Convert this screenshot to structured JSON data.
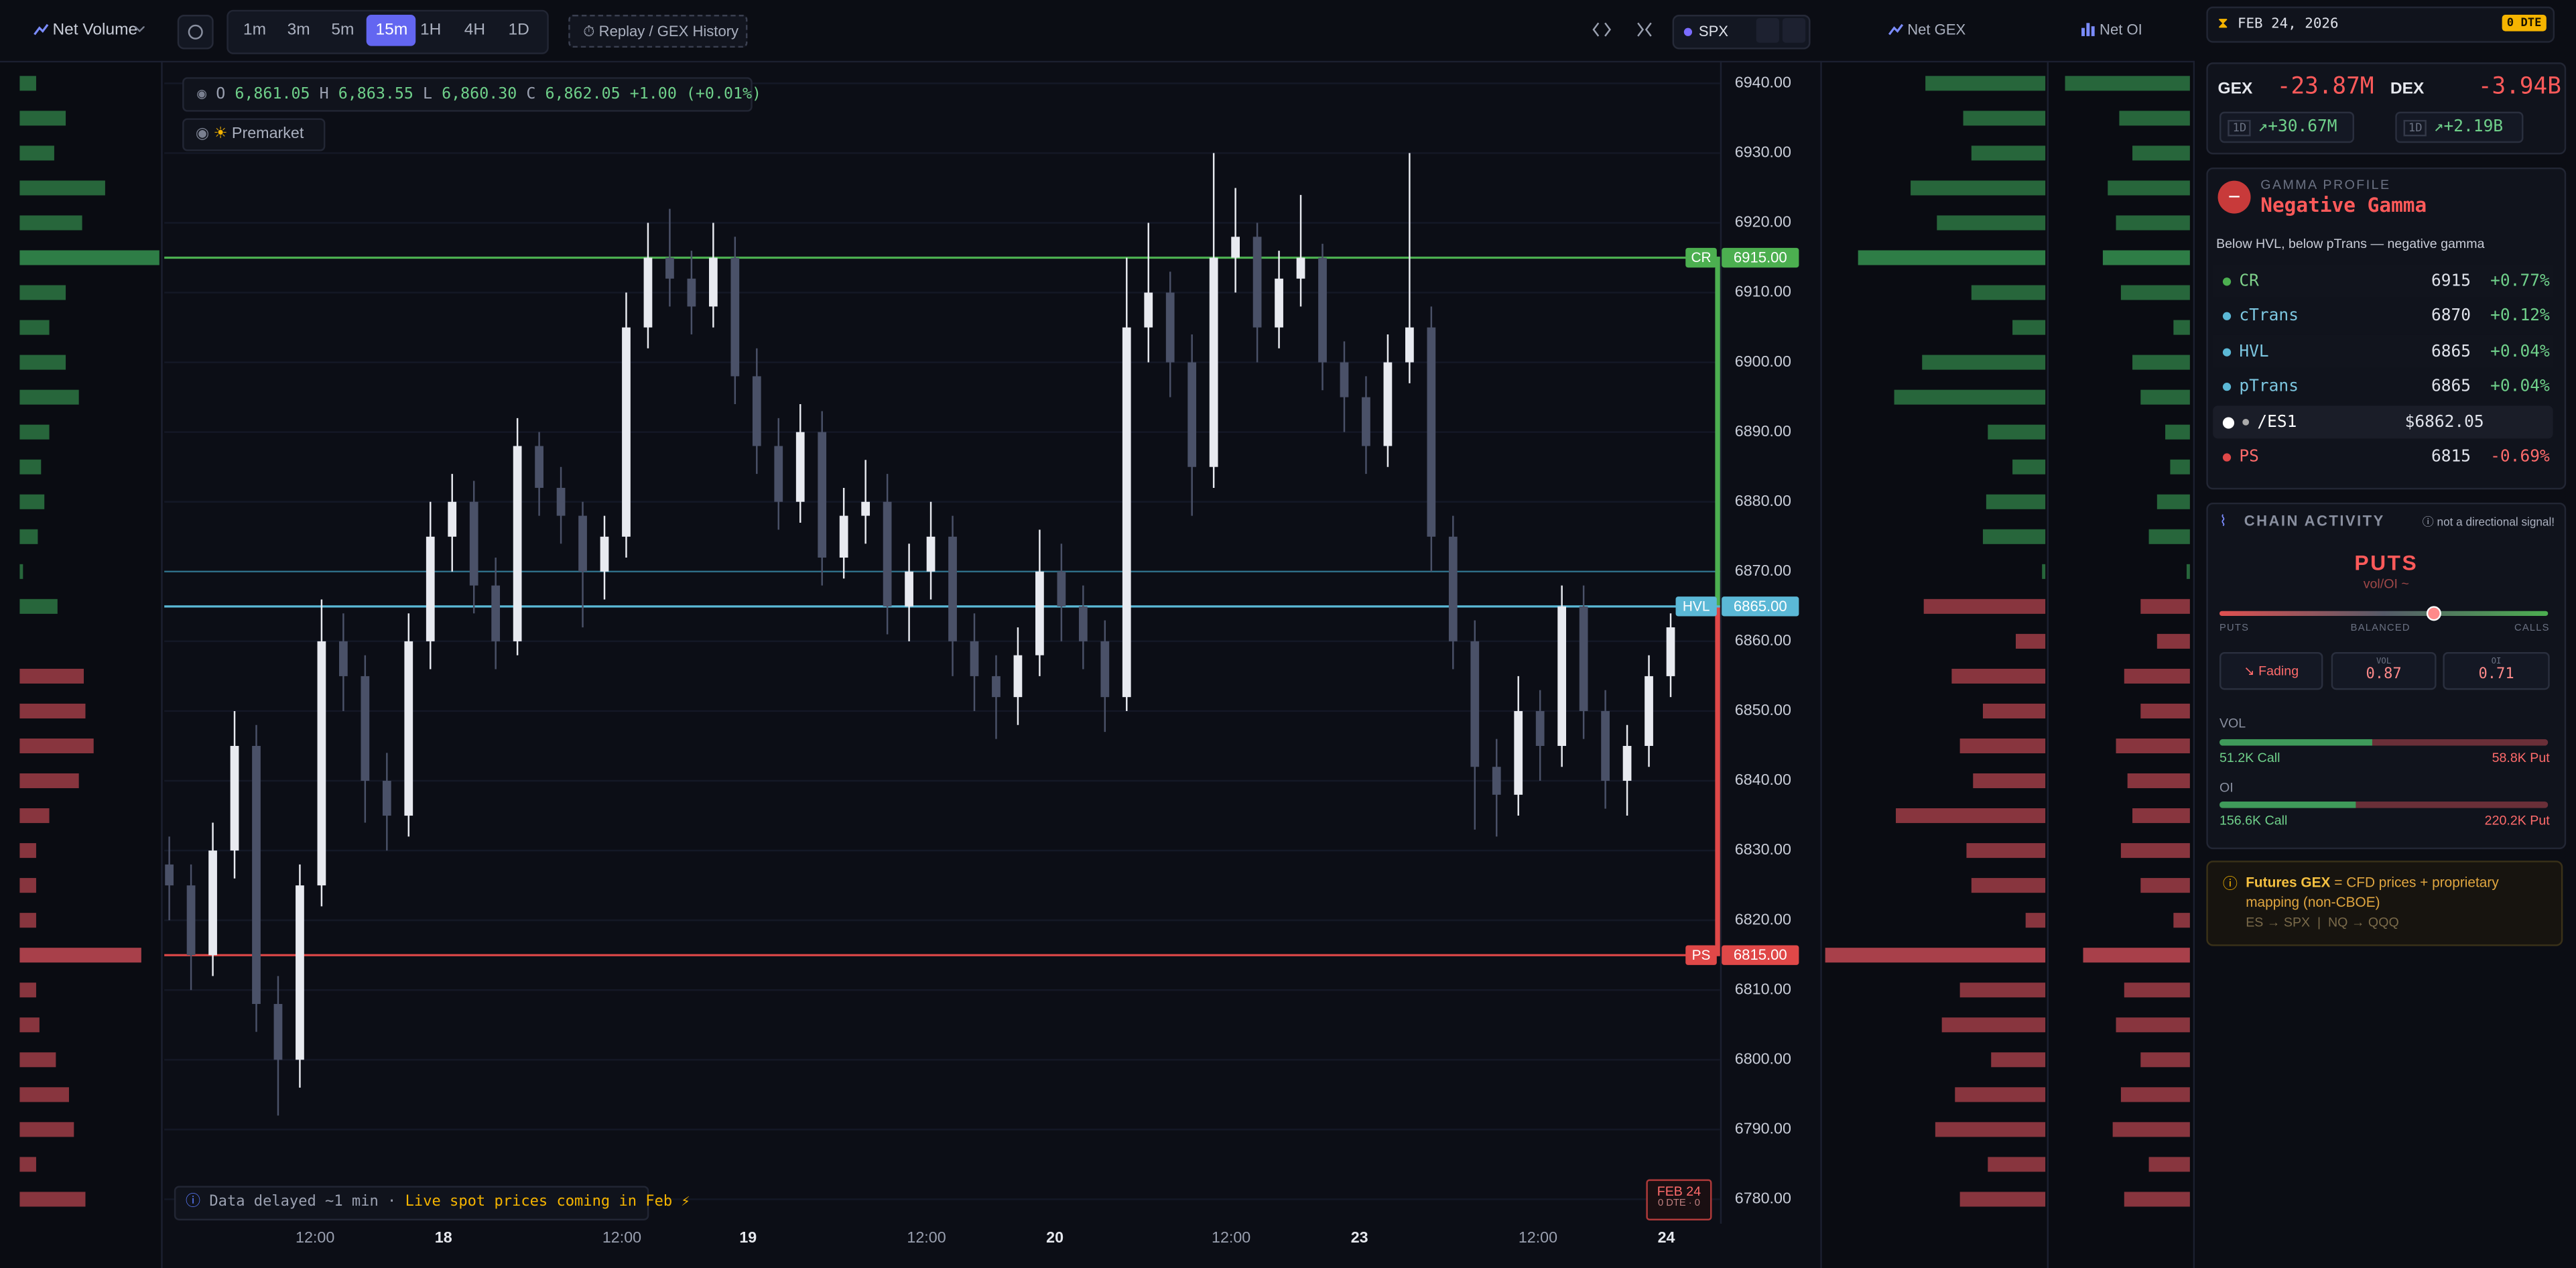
{
  "toolbar": {
    "left_dropdown": "Net Volume",
    "timeframes": [
      "1m",
      "3m",
      "5m",
      "15m",
      "1H",
      "4H",
      "1D"
    ],
    "active_timeframe": "15m",
    "replay": "Replay / GEX History",
    "symbol": "SPX",
    "gex_dropdown": "Net GEX",
    "oi_dropdown": "Net OI"
  },
  "chart": {
    "type": "candlestick",
    "ohlc": {
      "o_label": "O",
      "o": "6,861.05",
      "h_label": "H",
      "h": "6,863.55",
      "l_label": "L",
      "l": "6,860.30",
      "c_label": "C",
      "c": "6,862.05",
      "change": "+1.00 (+0.01%)"
    },
    "session": "Premarket",
    "xlim": [
      -0.23,
      71.27
    ],
    "ylim": [
      6776.5,
      6943
    ],
    "yticks": [
      {
        "value": 6940,
        "label": "6940.00"
      },
      {
        "value": 6930,
        "label": "6930.00"
      },
      {
        "value": 6920,
        "label": "6920.00"
      },
      {
        "value": 6910,
        "label": "6910.00"
      },
      {
        "value": 6900,
        "label": "6900.00"
      },
      {
        "value": 6890,
        "label": "6890.00"
      },
      {
        "value": 6880,
        "label": "6880.00"
      },
      {
        "value": 6870,
        "label": "6870.00"
      },
      {
        "value": 6860,
        "label": "6860.00"
      },
      {
        "value": 6850,
        "label": "6850.00"
      },
      {
        "value": 6840,
        "label": "6840.00"
      },
      {
        "value": 6830,
        "label": "6830.00"
      },
      {
        "value": 6820,
        "label": "6820.00"
      },
      {
        "value": 6810,
        "label": "6810.00"
      },
      {
        "value": 6800,
        "label": "6800.00"
      },
      {
        "value": 6790,
        "label": "6790.00"
      },
      {
        "value": 6780,
        "label": "6780.00"
      }
    ],
    "xticks": [
      {
        "value": 6.7,
        "label": "12:00"
      },
      {
        "value": 12.6,
        "label": "18"
      },
      {
        "value": 20.8,
        "label": "12:00"
      },
      {
        "value": 26.6,
        "label": "19"
      },
      {
        "value": 34.8,
        "label": "12:00"
      },
      {
        "value": 40.7,
        "label": "20"
      },
      {
        "value": 48.8,
        "label": "12:00"
      },
      {
        "value": 54.7,
        "label": "23"
      },
      {
        "value": 62.9,
        "label": "12:00"
      },
      {
        "value": 68.8,
        "label": "24"
      }
    ],
    "candles": [
      [
        6828,
        6832,
        6820,
        6825
      ],
      [
        6825,
        6828,
        6810,
        6815
      ],
      [
        6815,
        6834,
        6812,
        6830
      ],
      [
        6830,
        6850,
        6826,
        6845
      ],
      [
        6845,
        6848,
        6804,
        6808
      ],
      [
        6808,
        6812,
        6792,
        6800
      ],
      [
        6800,
        6828,
        6796,
        6825
      ],
      [
        6825,
        6866,
        6822,
        6860
      ],
      [
        6860,
        6864,
        6850,
        6855
      ],
      [
        6855,
        6858,
        6834,
        6840
      ],
      [
        6840,
        6844,
        6830,
        6835
      ],
      [
        6835,
        6864,
        6832,
        6860
      ],
      [
        6860,
        6880,
        6856,
        6875
      ],
      [
        6875,
        6884,
        6870,
        6880
      ],
      [
        6880,
        6883,
        6864,
        6868
      ],
      [
        6868,
        6872,
        6856,
        6860
      ],
      [
        6860,
        6892,
        6858,
        6888
      ],
      [
        6888,
        6890,
        6878,
        6882
      ],
      [
        6882,
        6885,
        6874,
        6878
      ],
      [
        6878,
        6880,
        6862,
        6870
      ],
      [
        6870,
        6878,
        6866,
        6875
      ],
      [
        6875,
        6910,
        6872,
        6905
      ],
      [
        6905,
        6920,
        6902,
        6915
      ],
      [
        6915,
        6922,
        6908,
        6912
      ],
      [
        6912,
        6916,
        6904,
        6908
      ],
      [
        6908,
        6920,
        6905,
        6915
      ],
      [
        6915,
        6918,
        6894,
        6898
      ],
      [
        6898,
        6902,
        6884,
        6888
      ],
      [
        6888,
        6892,
        6876,
        6880
      ],
      [
        6880,
        6894,
        6877,
        6890
      ],
      [
        6890,
        6893,
        6868,
        6872
      ],
      [
        6872,
        6882,
        6869,
        6878
      ],
      [
        6878,
        6886,
        6874,
        6880
      ],
      [
        6880,
        6884,
        6861,
        6865
      ],
      [
        6865,
        6874,
        6860,
        6870
      ],
      [
        6870,
        6880,
        6866,
        6875
      ],
      [
        6875,
        6878,
        6855,
        6860
      ],
      [
        6860,
        6864,
        6850,
        6855
      ],
      [
        6855,
        6858,
        6846,
        6852
      ],
      [
        6852,
        6862,
        6848,
        6858
      ],
      [
        6858,
        6876,
        6855,
        6870
      ],
      [
        6870,
        6874,
        6860,
        6865
      ],
      [
        6865,
        6868,
        6856,
        6860
      ],
      [
        6860,
        6863,
        6847,
        6852
      ],
      [
        6852,
        6915,
        6850,
        6905
      ],
      [
        6905,
        6920,
        6900,
        6910
      ],
      [
        6910,
        6913,
        6895,
        6900
      ],
      [
        6900,
        6904,
        6878,
        6885
      ],
      [
        6885,
        6930,
        6882,
        6915
      ],
      [
        6915,
        6925,
        6910,
        6918
      ],
      [
        6918,
        6920,
        6900,
        6905
      ],
      [
        6905,
        6916,
        6902,
        6912
      ],
      [
        6912,
        6924,
        6908,
        6915
      ],
      [
        6915,
        6917,
        6896,
        6900
      ],
      [
        6900,
        6903,
        6890,
        6895
      ],
      [
        6895,
        6898,
        6884,
        6888
      ],
      [
        6888,
        6904,
        6885,
        6900
      ],
      [
        6900,
        6930,
        6897,
        6905
      ],
      [
        6905,
        6908,
        6870,
        6875
      ],
      [
        6875,
        6878,
        6856,
        6860
      ],
      [
        6860,
        6863,
        6833,
        6842
      ],
      [
        6842,
        6846,
        6832,
        6838
      ],
      [
        6838,
        6855,
        6835,
        6850
      ],
      [
        6850,
        6853,
        6840,
        6845
      ],
      [
        6845,
        6868,
        6842,
        6865
      ],
      [
        6865,
        6868,
        6846,
        6850
      ],
      [
        6850,
        6853,
        6836,
        6840
      ],
      [
        6840,
        6848,
        6835,
        6845
      ],
      [
        6845,
        6858,
        6842,
        6855
      ],
      [
        6855,
        6864,
        6852,
        6862
      ]
    ],
    "up_color": "#e8eaf0",
    "down_color": "#4a5168",
    "levels": [
      {
        "name": "CR",
        "price": 6915,
        "label": "6915.00",
        "color": "#4caf50"
      },
      {
        "name": "HVL",
        "price": 6865,
        "label": "6865.00",
        "color": "#5bb8d6"
      },
      {
        "name": "PS",
        "price": 6815,
        "label": "6815.00",
        "color": "#e04848"
      }
    ],
    "minor_levels": [
      {
        "price": 6870,
        "color": "#2f6f88"
      }
    ],
    "notice": "Data delayed ~1 min ·",
    "notice_highlight": "Live spot prices coming in Feb ⚡",
    "expiry": {
      "date": "FEB 24",
      "dte": "0 DTE · 0"
    }
  },
  "profiles": {
    "levels": [
      6940,
      6935,
      6930,
      6925,
      6920,
      6915,
      6910,
      6905,
      6900,
      6895,
      6890,
      6885,
      6880,
      6875,
      6870,
      6865,
      6860,
      6855,
      6850,
      6845,
      6840,
      6835,
      6830,
      6825,
      6820,
      6815,
      6810,
      6805,
      6800,
      6795,
      6790,
      6785,
      6780
    ],
    "pos_color": "#2e7d46",
    "neg_color": "#a8404a",
    "net_volume": [
      10,
      28,
      21,
      52,
      38,
      85,
      28,
      18,
      28,
      36,
      18,
      13,
      15,
      11,
      2,
      23,
      0,
      -39,
      -40,
      -45,
      -36,
      -18,
      -10,
      -10,
      -10,
      -74,
      -10,
      -12,
      -22,
      -30,
      -33,
      -10,
      -40
    ],
    "net_gex": [
      73,
      50,
      45,
      82,
      66,
      114,
      45,
      20,
      75,
      92,
      35,
      20,
      36,
      38,
      2,
      -74,
      -18,
      -57,
      -38,
      -52,
      -44,
      -91,
      -48,
      -45,
      -12,
      -134,
      -52,
      -63,
      -33,
      -55,
      -67,
      -35,
      -52
    ],
    "net_oi": [
      76,
      43,
      35,
      50,
      45,
      53,
      42,
      10,
      35,
      30,
      15,
      12,
      20,
      25,
      2,
      -30,
      -20,
      -40,
      -30,
      -45,
      -38,
      -35,
      -42,
      -30,
      -10,
      -65,
      -40,
      -45,
      -30,
      -42,
      -47,
      -25,
      -40
    ]
  },
  "panel": {
    "date": "FEB 24, 2026",
    "dte_badge": "0 DTE",
    "gex_label": "GEX",
    "gex": "-23.87M",
    "dex_label": "DEX",
    "dex": "-3.94B",
    "gex_period": "1D",
    "gex_change": "+30.67M",
    "dex_period": "1D",
    "dex_change": "+2.19B",
    "gamma_heading": "GAMMA PROFILE",
    "gamma_state": "Negative Gamma",
    "gamma_note": "Below HVL, below pTrans — negative gamma",
    "rows": [
      {
        "name": "CR",
        "price": "6915",
        "change": "+0.77%",
        "dot": "#4caf50",
        "name_color": "#7ed08a",
        "change_color": "#6fd08a"
      },
      {
        "name": "cTrans",
        "price": "6870",
        "change": "+0.12%",
        "dot": "#5bb8d6",
        "name_color": "#7cc6e0",
        "change_color": "#6fd08a"
      },
      {
        "name": "HVL",
        "price": "6865",
        "change": "+0.04%",
        "dot": "#5bb8d6",
        "name_color": "#7cc6e0",
        "change_color": "#6fd08a"
      },
      {
        "name": "pTrans",
        "price": "6865",
        "change": "+0.04%",
        "dot": "#5bb8d6",
        "name_color": "#7cc6e0",
        "change_color": "#6fd08a"
      },
      {
        "name": "/ES1",
        "price": "$6862.05",
        "dot": "#ffffff",
        "name_color": "#ffffff"
      },
      {
        "name": "PS",
        "price": "6815",
        "change": "-0.69%",
        "dot": "#e04848",
        "name_color": "#ff6b6b",
        "change_color": "#ff6b6b"
      }
    ],
    "chain_heading": "CHAIN ACTIVITY",
    "chain_note": "not a directional signal!",
    "bias": "PUTS",
    "bias_sub": "vol/OI ~",
    "slider_labels": [
      "PUTS",
      "BALANCED",
      "CALLS"
    ],
    "slider_position": 0.65,
    "trend": "↘ Fading",
    "vol_ratio_label": "VOL",
    "vol_ratio": "0.87",
    "oi_ratio_label": "OI",
    "oi_ratio": "0.71",
    "vol_heading": "VOL",
    "vol_call": {
      "value": 51200,
      "label": "51.2K Call"
    },
    "vol_put": {
      "value": 58800,
      "label": "58.8K Put"
    },
    "oi_heading": "OI",
    "oi_call": {
      "value": 156600,
      "label": "156.6K Call"
    },
    "oi_put": {
      "value": 220200,
      "label": "220.2K Put"
    },
    "futures_title": "Futures GEX",
    "futures_text": "= CFD prices + proprietary mapping (non-CBOE)",
    "futures_map": "ES → SPX  |  NQ → QQQ"
  }
}
